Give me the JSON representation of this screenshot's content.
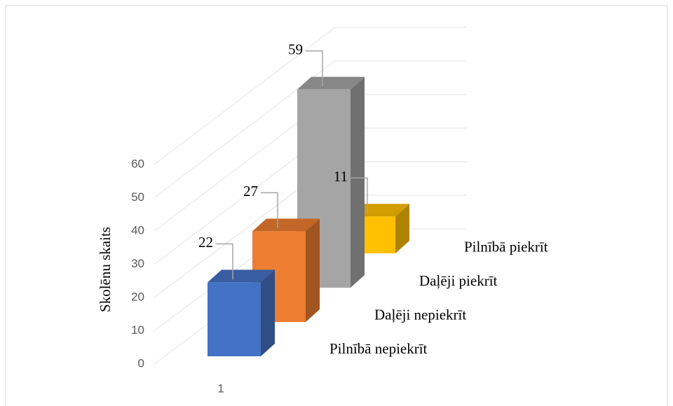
{
  "chart_data": {
    "type": "bar3d",
    "y_label": "Skolēnu skaits",
    "categories": [
      "1"
    ],
    "series": [
      {
        "name": "Pilnībā nepiekrīt",
        "color": "#4472c4",
        "values": [
          22
        ]
      },
      {
        "name": "Daļēji nepiekrīt",
        "color": "#ed7d31",
        "values": [
          27
        ]
      },
      {
        "name": "Daļēji piekrīt",
        "color": "#a5a5a5",
        "values": [
          59
        ]
      },
      {
        "name": "Pilnībā piekrīt",
        "color": "#ffc000",
        "values": [
          11
        ]
      }
    ],
    "ylim": [
      0,
      60
    ],
    "yticks": [
      0,
      10,
      20,
      30,
      40,
      50,
      60
    ],
    "grid": true
  }
}
